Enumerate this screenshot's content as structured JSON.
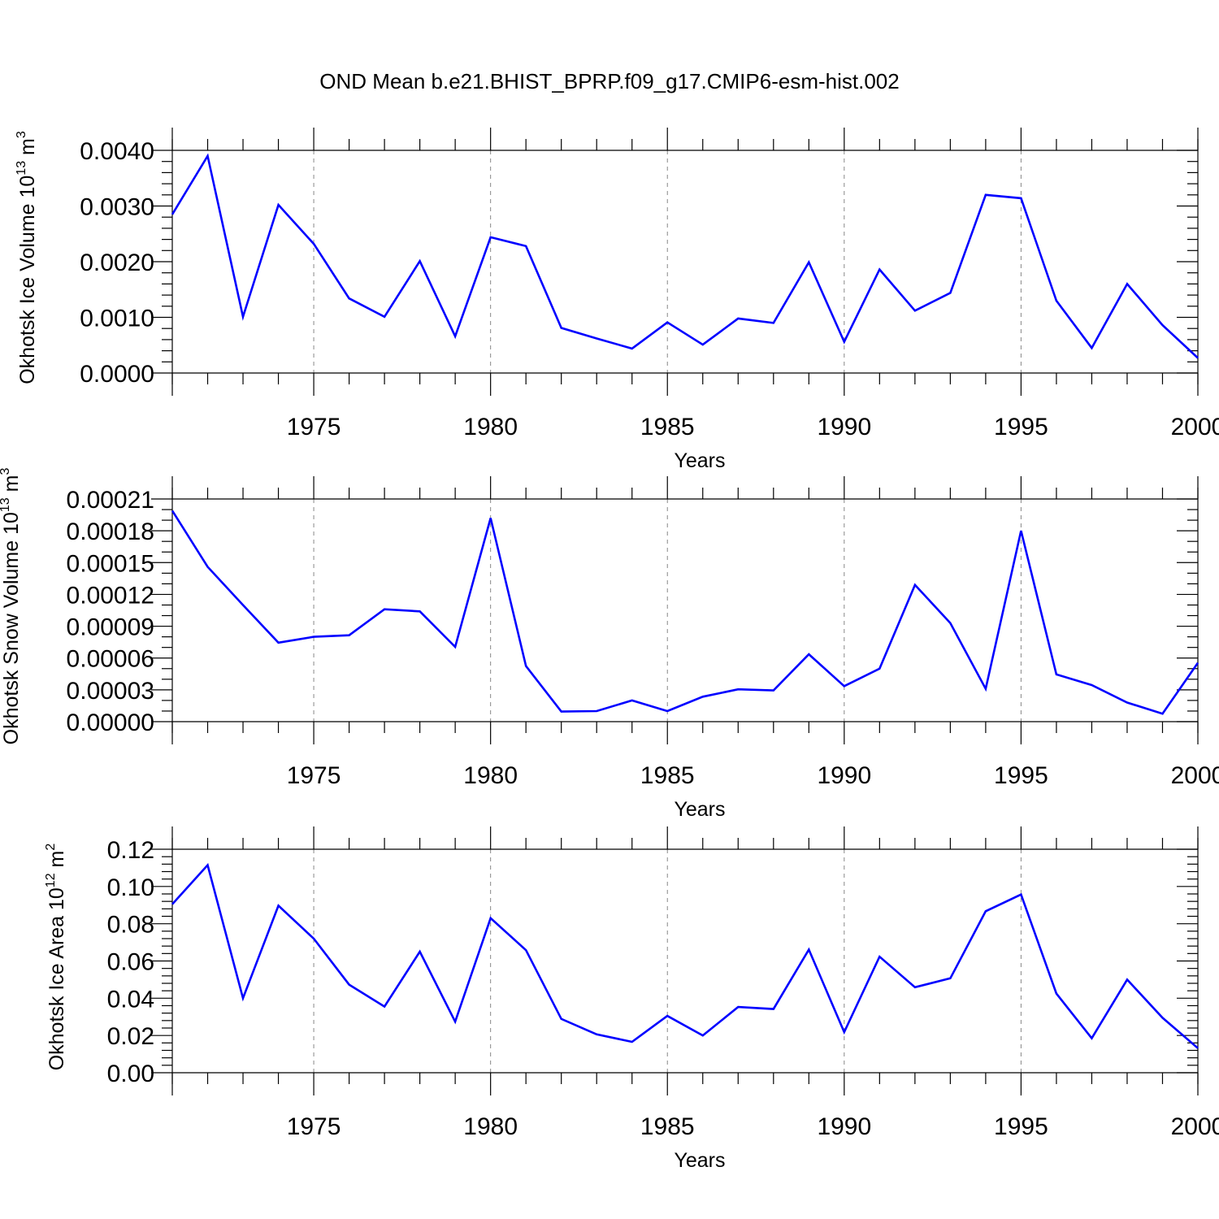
{
  "title": "OND Mean b.e21.BHIST_BPRP.f09_g17.CMIP6-esm-hist.002",
  "colors": {
    "series": "#0000ff",
    "grid": "#888888",
    "axis": "#000000"
  },
  "chart_data": [
    {
      "type": "line",
      "ylabel": "Okhotsk Ice Volume 10",
      "ylabel_exp": "13",
      "ylabel_unit": " m",
      "ylabel_unit_exp": "3",
      "xlabel": "Years",
      "xlim": [
        1971,
        2000
      ],
      "ylim": [
        0,
        0.004
      ],
      "x_major_ticks": [
        1975,
        1980,
        1985,
        1990,
        1995,
        2000
      ],
      "x_tick_labels": [
        "1975",
        "1980",
        "1985",
        "1990",
        "1995",
        "2000"
      ],
      "y_major_ticks": [
        0,
        0.001,
        0.002,
        0.003,
        0.004
      ],
      "y_tick_labels": [
        "0.0000",
        "0.0010",
        "0.0020",
        "0.0030",
        "0.0040"
      ],
      "y_minor_step": 0.0002,
      "grid": "vertical-dashed",
      "x": [
        1971,
        1972,
        1973,
        1974,
        1975,
        1976,
        1977,
        1978,
        1979,
        1980,
        1981,
        1982,
        1983,
        1984,
        1985,
        1986,
        1987,
        1988,
        1989,
        1990,
        1991,
        1992,
        1993,
        1994,
        1995,
        1996,
        1997,
        1998,
        1999,
        2000
      ],
      "values": [
        0.00285,
        0.0039,
        0.00101,
        0.00302,
        0.00232,
        0.00134,
        0.00101,
        0.00201,
        0.00066,
        0.00244,
        0.00228,
        0.00081,
        0.00062,
        0.00044,
        0.00091,
        0.00051,
        0.00098,
        0.0009,
        0.00199,
        0.00056,
        0.00186,
        0.00112,
        0.00144,
        0.0032,
        0.00314,
        0.0013,
        0.00045,
        0.0016,
        0.00086,
        0.00027
      ]
    },
    {
      "type": "line",
      "ylabel": "Okhotsk Snow Volume 10",
      "ylabel_exp": "13",
      "ylabel_unit": " m",
      "ylabel_unit_exp": "3",
      "xlabel": "Years",
      "xlim": [
        1971,
        2000
      ],
      "ylim": [
        0,
        0.00021
      ],
      "x_major_ticks": [
        1975,
        1980,
        1985,
        1990,
        1995,
        2000
      ],
      "x_tick_labels": [
        "1975",
        "1980",
        "1985",
        "1990",
        "1995",
        "2000"
      ],
      "y_major_ticks": [
        0,
        3e-05,
        6e-05,
        9e-05,
        0.00012,
        0.00015,
        0.00018,
        0.00021
      ],
      "y_tick_labels": [
        "0.00000",
        "0.00003",
        "0.00006",
        "0.00009",
        "0.00012",
        "0.00015",
        "0.00018",
        "0.00021"
      ],
      "y_minor_step": 1e-05,
      "grid": "vertical-dashed",
      "x": [
        1971,
        1972,
        1973,
        1974,
        1975,
        1976,
        1977,
        1978,
        1979,
        1980,
        1981,
        1982,
        1983,
        1984,
        1985,
        1986,
        1987,
        1988,
        1989,
        1990,
        1991,
        1992,
        1993,
        1994,
        1995,
        1996,
        1997,
        1998,
        1999,
        2000
      ],
      "values": [
        0.000199,
        0.000146,
        0.00011,
        7.45e-05,
        8e-05,
        8.15e-05,
        0.000106,
        0.000104,
        7.05e-05,
        0.000192,
        5.25e-05,
        9.5e-06,
        1e-05,
        2e-05,
        1e-05,
        2.35e-05,
        3.05e-05,
        2.95e-05,
        6.35e-05,
        3.35e-05,
        5e-05,
        0.000129,
        9.3e-05,
        3.1e-05,
        0.00018,
        4.45e-05,
        3.45e-05,
        1.8e-05,
        7.5e-06,
        5.55e-05
      ]
    },
    {
      "type": "line",
      "ylabel": "Okhotsk Ice Area 10",
      "ylabel_exp": "12",
      "ylabel_unit": " m",
      "ylabel_unit_exp": "2",
      "xlabel": "Years",
      "xlim": [
        1971,
        2000
      ],
      "ylim": [
        0,
        0.12
      ],
      "x_major_ticks": [
        1975,
        1980,
        1985,
        1990,
        1995,
        2000
      ],
      "x_tick_labels": [
        "1975",
        "1980",
        "1985",
        "1990",
        "1995",
        "2000"
      ],
      "y_major_ticks": [
        0,
        0.02,
        0.04,
        0.06,
        0.08,
        0.1,
        0.12
      ],
      "y_tick_labels": [
        "0.00",
        "0.02",
        "0.04",
        "0.06",
        "0.08",
        "0.10",
        "0.12"
      ],
      "y_minor_step": 0.004,
      "grid": "vertical-dashed",
      "x": [
        1971,
        1972,
        1973,
        1974,
        1975,
        1976,
        1977,
        1978,
        1979,
        1980,
        1981,
        1982,
        1983,
        1984,
        1985,
        1986,
        1987,
        1988,
        1989,
        1990,
        1991,
        1992,
        1993,
        1994,
        1995,
        1996,
        1997,
        1998,
        1999,
        2000
      ],
      "values": [
        0.0905,
        0.1115,
        0.04,
        0.0897,
        0.072,
        0.0473,
        0.0355,
        0.065,
        0.0274,
        0.083,
        0.0658,
        0.0289,
        0.0206,
        0.0166,
        0.0305,
        0.02,
        0.0353,
        0.0342,
        0.0661,
        0.0218,
        0.0623,
        0.0459,
        0.0507,
        0.0867,
        0.0957,
        0.0425,
        0.0185,
        0.05,
        0.0295,
        0.0132
      ]
    }
  ]
}
